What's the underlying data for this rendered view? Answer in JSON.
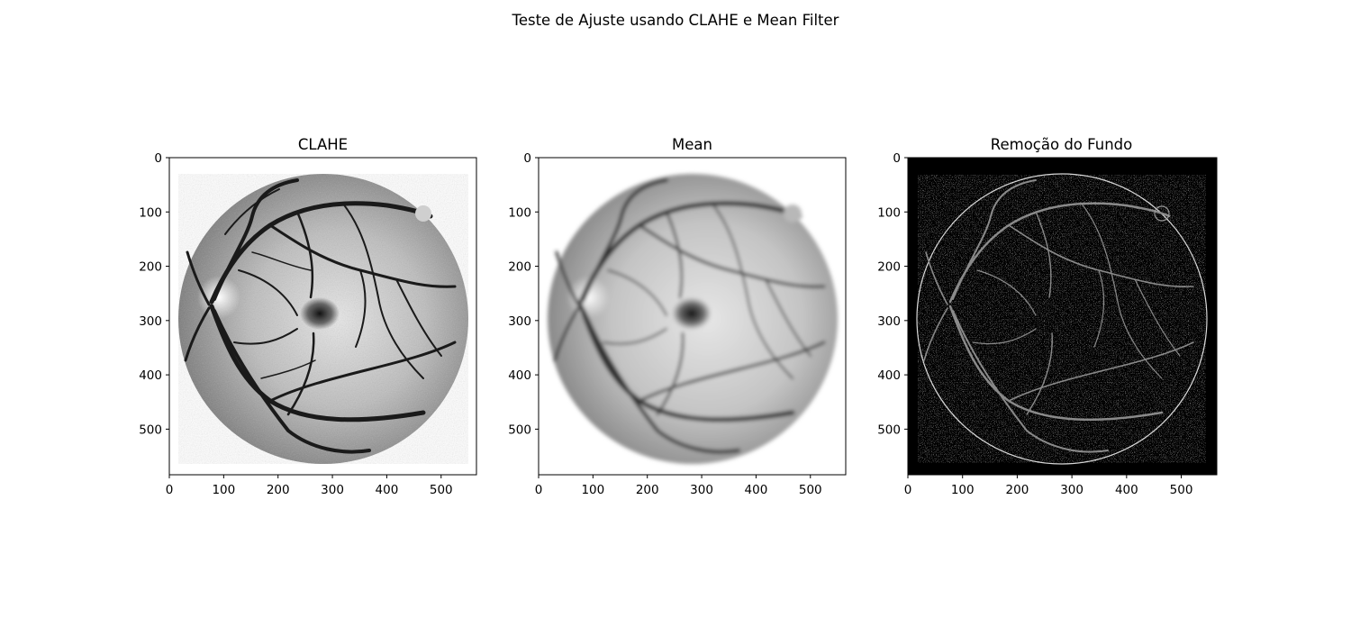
{
  "figure": {
    "suptitle": "Teste de Ajuste usando CLAHE e Mean Filter"
  },
  "chart_data": [
    {
      "type": "image",
      "title": "CLAHE",
      "xlabel": "",
      "ylabel": "",
      "xlim": [
        0,
        565
      ],
      "ylim": [
        584,
        0
      ],
      "xticks": [
        0,
        100,
        200,
        300,
        400,
        500
      ],
      "yticks": [
        0,
        100,
        200,
        300,
        400,
        500
      ],
      "grid": false,
      "colormap": "gray",
      "background": "#ffffff"
    },
    {
      "type": "image",
      "title": "Mean",
      "xlabel": "",
      "ylabel": "",
      "xlim": [
        0,
        565
      ],
      "ylim": [
        584,
        0
      ],
      "xticks": [
        0,
        100,
        200,
        300,
        400,
        500
      ],
      "yticks": [
        0,
        100,
        200,
        300,
        400,
        500
      ],
      "grid": false,
      "colormap": "gray",
      "background": "#ffffff"
    },
    {
      "type": "image",
      "title": "Remoção do Fundo",
      "xlabel": "",
      "ylabel": "",
      "xlim": [
        0,
        565
      ],
      "ylim": [
        584,
        0
      ],
      "xticks": [
        0,
        100,
        200,
        300,
        400,
        500
      ],
      "yticks": [
        0,
        100,
        200,
        300,
        400,
        500
      ],
      "grid": false,
      "colormap": "gray",
      "background": "#000000"
    }
  ]
}
